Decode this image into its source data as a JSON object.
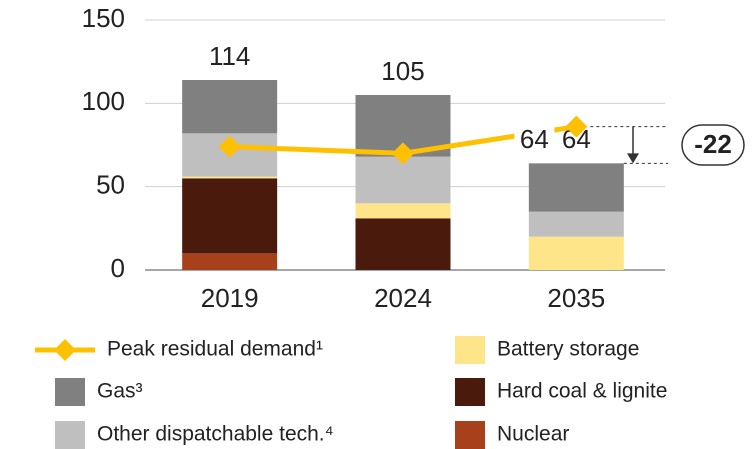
{
  "chart_data": {
    "type": "bar",
    "stacked": true,
    "categories": [
      "2019",
      "2024",
      "2035"
    ],
    "series": [
      {
        "name": "Peak residual demand¹",
        "type": "line",
        "color": "#ffc000",
        "values": [
          74,
          70,
          86
        ]
      },
      {
        "name": "Nuclear",
        "color": "#a8401c",
        "values": [
          10,
          0,
          0
        ]
      },
      {
        "name": "Hard coal & lignite",
        "color": "#4a1a0c",
        "values": [
          45,
          31,
          0
        ]
      },
      {
        "name": "Battery storage",
        "color": "#ffe58a",
        "values": [
          1,
          9,
          20
        ]
      },
      {
        "name": "Other dispatchable tech.⁴",
        "color": "#bfbfbf",
        "values": [
          26,
          28,
          15
        ]
      },
      {
        "name": "Gas³",
        "color": "#808080",
        "values": [
          32,
          37,
          29
        ]
      }
    ],
    "totals": [
      114,
      105,
      64
    ],
    "annotation": "-22",
    "ylim": [
      0,
      150
    ],
    "yticks": [
      0,
      50,
      100,
      150
    ],
    "grid": true
  }
}
